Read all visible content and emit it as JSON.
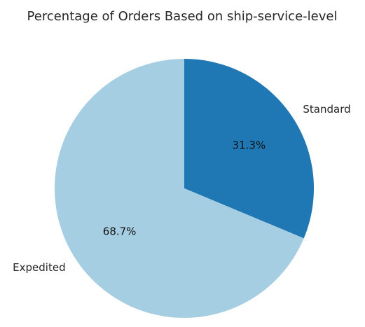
{
  "chart_data": {
    "type": "pie",
    "title": "Percentage of Orders Based on ship-service-level",
    "start_angle_deg": 90,
    "direction": "clockwise",
    "legend": "none",
    "slices": [
      {
        "label": "Standard",
        "value": 31.3,
        "value_label": "31.3%",
        "color": "#1f77b4"
      },
      {
        "label": "Expedited",
        "value": 68.7,
        "value_label": "68.7%",
        "color": "#a6cee3"
      }
    ]
  }
}
